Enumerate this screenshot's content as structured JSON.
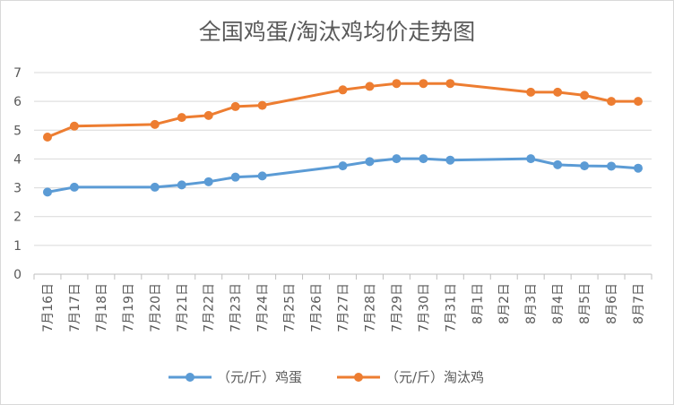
{
  "chart_data": {
    "type": "line",
    "title": "全国鸡蛋/淘汰鸡均价走势图",
    "xlabel": "",
    "ylabel": "",
    "ylim": [
      0,
      7
    ],
    "yticks": [
      0,
      1,
      2,
      3,
      4,
      5,
      6,
      7
    ],
    "grid": "horizontal",
    "legend_position": "bottom",
    "categories": [
      "7月16日",
      "7月17日",
      "7月18日",
      "7月19日",
      "7月20日",
      "7月21日",
      "7月22日",
      "7月23日",
      "7月24日",
      "7月25日",
      "7月26日",
      "7月27日",
      "7月28日",
      "7月29日",
      "7月30日",
      "7月31日",
      "8月1日",
      "8月2日",
      "8月3日",
      "8月4日",
      "8月5日",
      "8月6日",
      "8月7日"
    ],
    "series": [
      {
        "name": "（元/斤）鸡蛋",
        "color": "#5b9bd5",
        "values": [
          2.85,
          3.02,
          null,
          null,
          3.02,
          3.1,
          3.21,
          3.37,
          3.41,
          null,
          null,
          3.76,
          3.91,
          4.01,
          4.01,
          3.96,
          null,
          null,
          4.01,
          3.8,
          3.76,
          3.75,
          3.68
        ]
      },
      {
        "name": "（元/斤）淘汰鸡",
        "color": "#ed7d31",
        "values": [
          4.76,
          5.14,
          null,
          null,
          5.2,
          5.44,
          5.51,
          5.82,
          5.86,
          null,
          null,
          6.4,
          6.52,
          6.62,
          6.62,
          6.62,
          null,
          null,
          6.32,
          6.32,
          6.21,
          6.0,
          6.0
        ]
      }
    ]
  }
}
